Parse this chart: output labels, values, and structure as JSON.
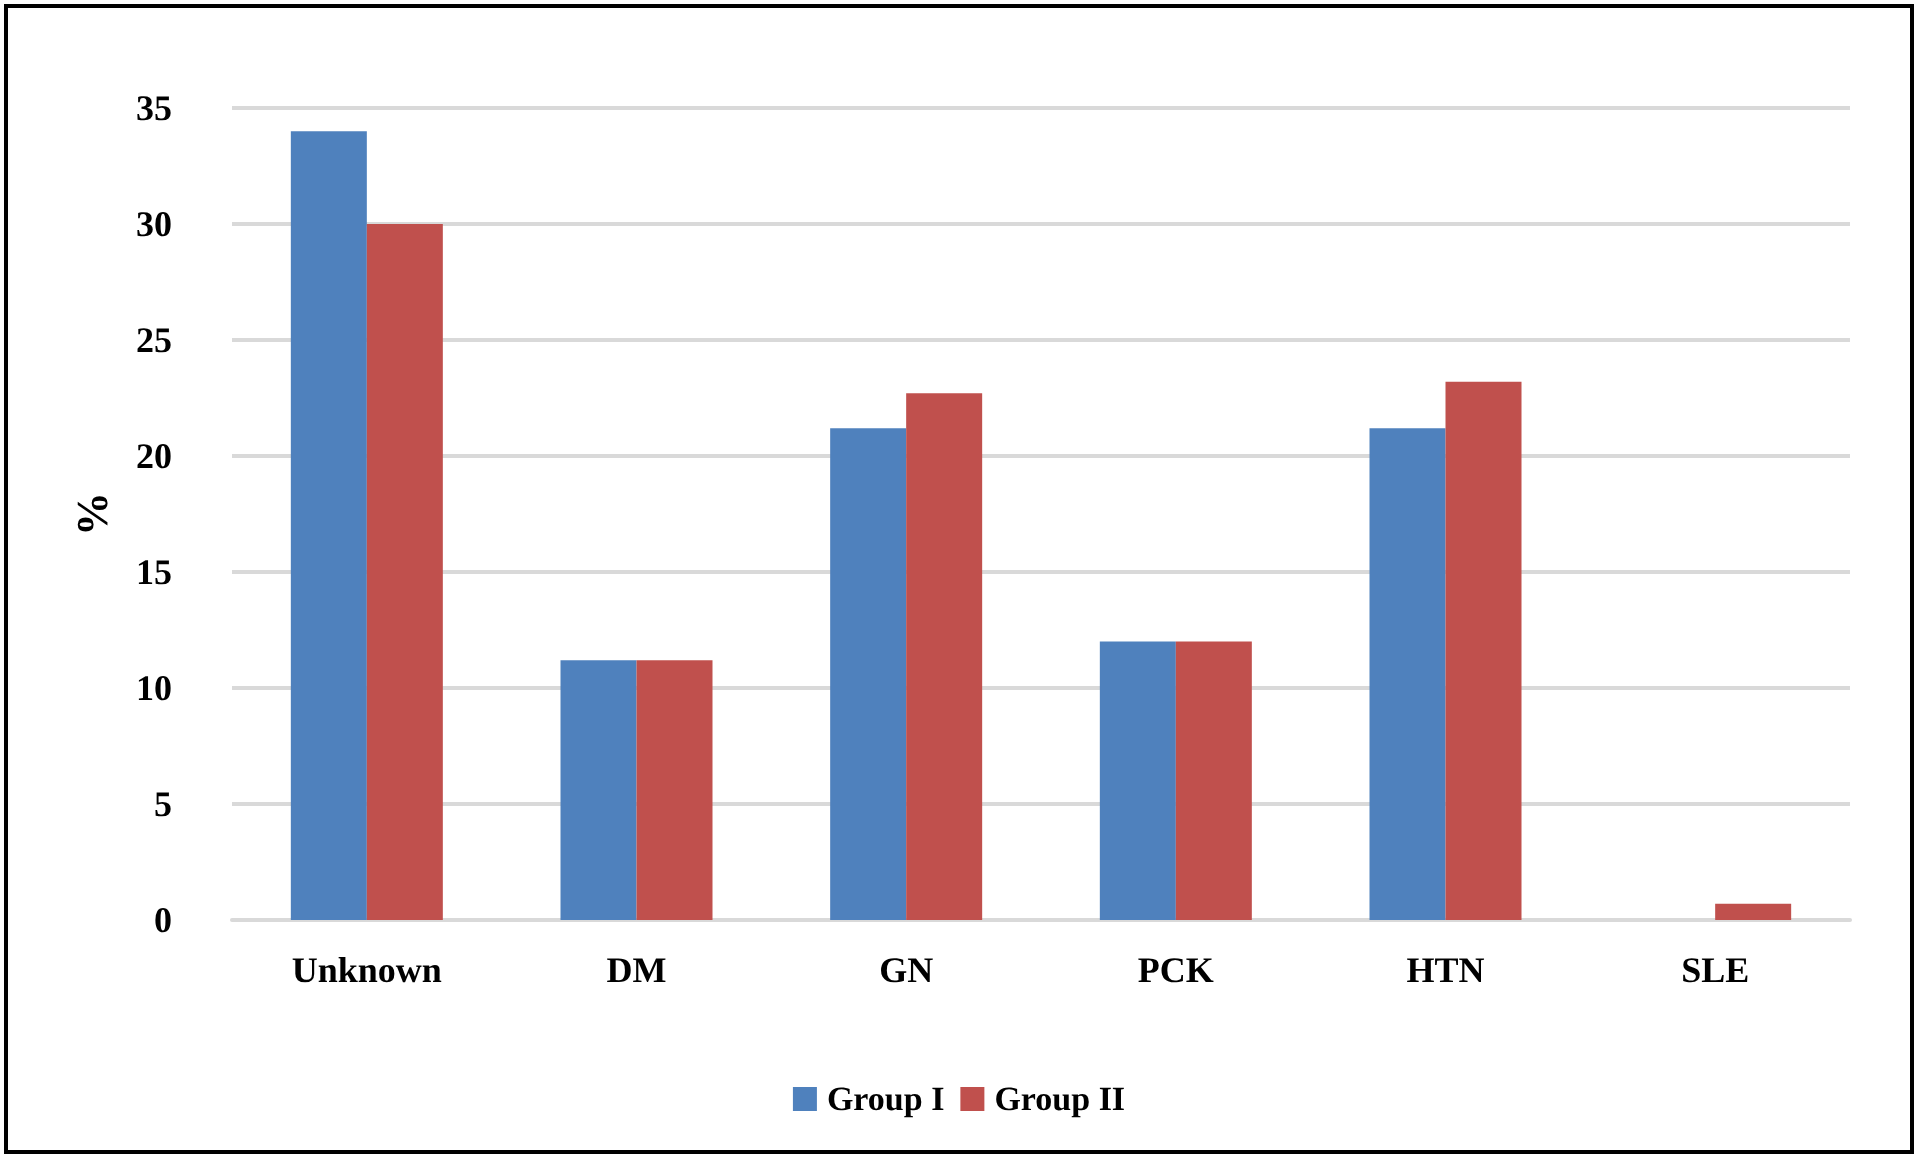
{
  "chart_data": {
    "type": "bar",
    "ylabel": "%",
    "categories": [
      "Unknown",
      "DM",
      "GN",
      "PCK",
      "HTN",
      "SLE"
    ],
    "series": [
      {
        "name": "Group I",
        "color": "#4f81bd",
        "values": [
          34,
          11.2,
          21.2,
          12,
          21.2,
          0
        ]
      },
      {
        "name": "Group II",
        "color": "#c0504d",
        "values": [
          30,
          11.2,
          22.7,
          12,
          23.2,
          0.7
        ]
      }
    ],
    "ylim": [
      0,
      35
    ],
    "yticks": [
      0,
      5,
      10,
      15,
      20,
      25,
      30,
      35
    ],
    "grid": "y",
    "legend": "bottom"
  }
}
